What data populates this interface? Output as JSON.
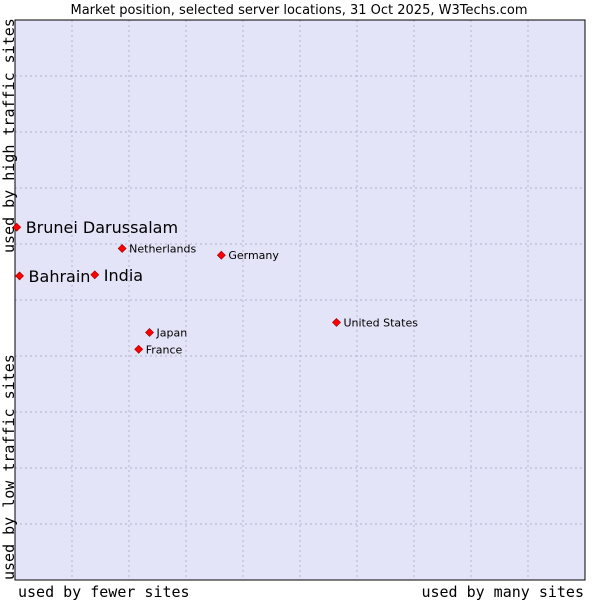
{
  "chart_data": {
    "type": "scatter",
    "title": "Market position, selected server locations, 31 Oct 2025, W3Techs.com",
    "xlabel_left": "used by fewer sites",
    "xlabel_right": "used by many sites",
    "ylabel_bottom": "used by low traffic sites",
    "ylabel_top": "used by high traffic sites",
    "xlim": [
      0,
      100
    ],
    "ylim": [
      0,
      100
    ],
    "grid": true,
    "colors": {
      "plot_bg": "#e4e4f8",
      "grid": "#a0a0b8",
      "border": "#000000",
      "marker": "#ff0000"
    },
    "points": [
      {
        "label": "Brunei Darussalam",
        "x": 0.3,
        "y": 63.0,
        "emphasis": true
      },
      {
        "label": "Bahrain",
        "x": 0.8,
        "y": 54.3,
        "emphasis": true
      },
      {
        "label": "India",
        "x": 14.0,
        "y": 54.5,
        "emphasis": true
      },
      {
        "label": "Netherlands",
        "x": 18.8,
        "y": 59.2,
        "emphasis": false
      },
      {
        "label": "Germany",
        "x": 36.2,
        "y": 58.0,
        "emphasis": false
      },
      {
        "label": "United States",
        "x": 56.4,
        "y": 46.0,
        "emphasis": false
      },
      {
        "label": "Japan",
        "x": 23.6,
        "y": 44.2,
        "emphasis": false
      },
      {
        "label": "France",
        "x": 21.7,
        "y": 41.2,
        "emphasis": false
      }
    ]
  }
}
